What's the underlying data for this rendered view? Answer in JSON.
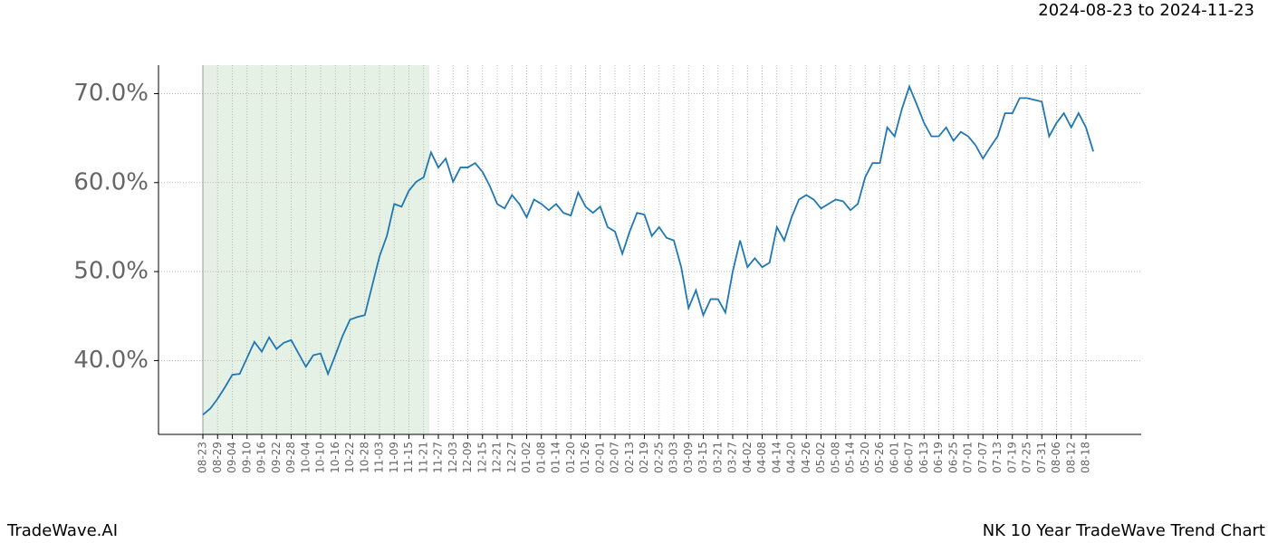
{
  "chart_data": {
    "type": "line",
    "title": "NK 10 Year TradeWave Trend Chart",
    "subtitle": "2024-08-23 to 2024-11-23",
    "brand": "TradeWave.AI",
    "categories": [
      "08-23",
      null,
      "08-29",
      null,
      "09-04",
      null,
      "09-10",
      null,
      "09-16",
      null,
      "09-22",
      null,
      "09-28",
      null,
      "10-04",
      null,
      "10-10",
      null,
      "10-16",
      null,
      "10-22",
      null,
      "10-28",
      null,
      "11-03",
      null,
      "11-09",
      null,
      "11-15",
      null,
      "11-21",
      null,
      "11-27",
      null,
      "12-03",
      null,
      "12-09",
      null,
      "12-15",
      null,
      "12-21",
      null,
      "12-27",
      null,
      "01-02",
      null,
      "01-08",
      null,
      "01-14",
      null,
      "01-20",
      null,
      "01-26",
      null,
      "02-01",
      null,
      "02-07",
      null,
      "02-13",
      null,
      "02-19",
      null,
      "02-25",
      null,
      "03-03",
      null,
      "03-09",
      null,
      "03-15",
      null,
      "03-21",
      null,
      "03-27",
      null,
      "04-02",
      null,
      "04-08",
      null,
      "04-14",
      null,
      "04-20",
      null,
      "04-26",
      null,
      "05-02",
      null,
      "05-08",
      null,
      "05-14",
      null,
      "05-20",
      null,
      "05-26",
      null,
      "06-01",
      null,
      "06-07",
      null,
      "06-13",
      null,
      "06-19",
      null,
      "06-25",
      null,
      "07-01",
      null,
      "07-07",
      null,
      "07-13",
      null,
      "07-19",
      null,
      "07-25",
      null,
      "07-31",
      null,
      "08-06",
      null,
      "08-12",
      null,
      "08-18",
      null
    ],
    "series": [
      {
        "color": "#1f77b4",
        "values": [
          33.9,
          34.6,
          35.7,
          37,
          38.4,
          38.5,
          40.3,
          42.1,
          41,
          42.6,
          41.3,
          42,
          42.3,
          40.8,
          39.3,
          40.6,
          40.8,
          38.5,
          40.6,
          42.8,
          44.6,
          44.9,
          45.1,
          48.4,
          51.7,
          54,
          57.6,
          57.3,
          59.1,
          60.1,
          60.6,
          63.4,
          61.7,
          62.7,
          60.1,
          61.7,
          61.7,
          62.2,
          61.2,
          59.6,
          57.6,
          57.1,
          58.6,
          57.6,
          56.1,
          58.1,
          57.6,
          56.9,
          57.6,
          56.6,
          56.3,
          58.9,
          57.3,
          56.6,
          57.3,
          55,
          54.5,
          52,
          54.5,
          56.6,
          56.4,
          54,
          55,
          53.8,
          53.5,
          50.5,
          45.9,
          47.9,
          45.1,
          46.9,
          46.9,
          45.4,
          50,
          53.5,
          50.5,
          51.5,
          50.5,
          51,
          55,
          53.5,
          56.1,
          58.1,
          58.6,
          58.1,
          57.1,
          57.6,
          58.1,
          57.9,
          56.9,
          57.6,
          60.6,
          62.2,
          62.2,
          66.2,
          65.2,
          68.3,
          70.8,
          68.8,
          66.7,
          65.2,
          65.2,
          66.2,
          64.7,
          65.7,
          65.2,
          64.2,
          62.7,
          64,
          65.2,
          67.8,
          67.8,
          69.5,
          69.5,
          69.3,
          69.1,
          65.2,
          66.7,
          67.8,
          66.2,
          67.8,
          66.2,
          63.5
        ]
      }
    ],
    "ylim": [
      31.7,
      73.2
    ],
    "yticks": [
      {
        "value": 40,
        "label": "40.0%"
      },
      {
        "value": 50,
        "label": "50.0%"
      },
      {
        "value": 60,
        "label": "60.0%"
      },
      {
        "value": 70,
        "label": "70.0%"
      }
    ],
    "grid": true
  }
}
